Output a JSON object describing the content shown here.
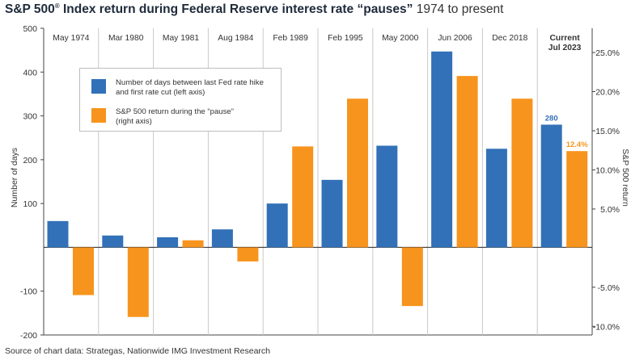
{
  "title": {
    "main": "S&P 500",
    "reg": "®",
    "main_rest": " Index return during Federal Reserve interest rate “pauses”",
    "subtitle": " 1974 to present"
  },
  "source": "Source of chart data: Strategas, Nationwide IMG Investment Research",
  "colors": {
    "days": "#3271b8",
    "return": "#f7941d",
    "grid": "#c8c8c8",
    "axis": "#444444"
  },
  "chart_data": {
    "type": "bar",
    "categories": [
      "May 1974",
      "Mar 1980",
      "May 1981",
      "Aug 1984",
      "Feb 1989",
      "Feb 1995",
      "May 2000",
      "Jun 2006",
      "Dec 2018",
      "Current Jul 2023"
    ],
    "category_lines": [
      [
        "May 1974"
      ],
      [
        "Mar 1980"
      ],
      [
        "May 1981"
      ],
      [
        "Aug 1984"
      ],
      [
        "Feb 1989"
      ],
      [
        "Feb 1995"
      ],
      [
        "May 2000"
      ],
      [
        "Jun 2006"
      ],
      [
        "Dec 2018"
      ],
      [
        "Current",
        "Jul 2023"
      ]
    ],
    "series": [
      {
        "name": "Number of days between last Fed rate hike and first rate cut (left axis)",
        "axis": "left",
        "values": [
          60,
          27,
          23,
          41,
          100,
          154,
          232,
          447,
          225,
          280
        ]
      },
      {
        "name": "S&P 500 return during the “pause” (right axis)",
        "axis": "right",
        "values": [
          -6.0,
          -8.8,
          1.0,
          -1.7,
          13.0,
          19.1,
          -7.4,
          22.0,
          19.1,
          12.4
        ]
      }
    ],
    "data_labels": {
      "days_current": "280",
      "return_current": "12.4%"
    },
    "ylabel": "Number of days",
    "y2label": "S&P 500 return",
    "ylim": [
      -200,
      500
    ],
    "y2lim": [
      -11.1,
      28.1
    ],
    "yticks": [
      500,
      400,
      300,
      200,
      100,
      -100,
      -200
    ],
    "y2ticks": [
      "25.0%",
      "20.0%",
      "15.0%",
      "10.0%",
      "5.0%",
      "-5.0%",
      "-10.0%"
    ],
    "y2tick_values": [
      25,
      20,
      15,
      10,
      5,
      -5,
      -10
    ],
    "legend": {
      "placement": "upper-left",
      "items": [
        {
          "line1": "Number of days between last Fed rate hike",
          "line2": "and first rate cut (left axis)"
        },
        {
          "line1": "S&P 500 return during the “pause”",
          "line2": "(right axis)"
        }
      ]
    }
  }
}
